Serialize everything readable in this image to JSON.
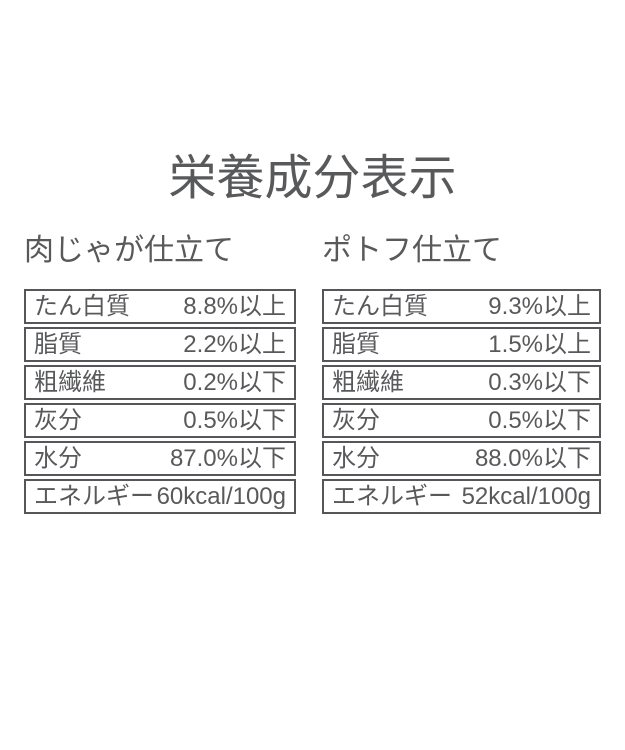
{
  "title": "栄養成分表示",
  "colors": {
    "text": "#58595b",
    "border": "#545659",
    "background": "#ffffff"
  },
  "tables": [
    {
      "title": "肉じゃが仕立て",
      "rows": [
        {
          "label": "たん白質",
          "value": "8.8%以上"
        },
        {
          "label": "脂質",
          "value": "2.2%以上"
        },
        {
          "label": "粗繊維",
          "value": "0.2%以下"
        },
        {
          "label": "灰分",
          "value": "0.5%以下"
        },
        {
          "label": "水分",
          "value": "87.0%以下"
        },
        {
          "label": "エネルギー",
          "value": "60kcal/100g"
        }
      ]
    },
    {
      "title": "ポトフ仕立て",
      "rows": [
        {
          "label": "たん白質",
          "value": "9.3%以上"
        },
        {
          "label": "脂質",
          "value": "1.5%以上"
        },
        {
          "label": "粗繊維",
          "value": "0.3%以下"
        },
        {
          "label": "灰分",
          "value": "0.5%以下"
        },
        {
          "label": "水分",
          "value": "88.0%以下"
        },
        {
          "label": "エネルギー",
          "value": "52kcal/100g"
        }
      ]
    }
  ]
}
